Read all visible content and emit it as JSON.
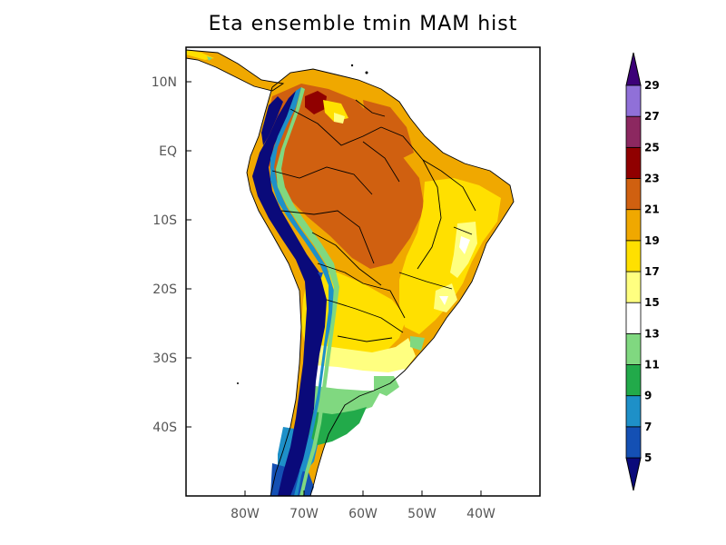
{
  "title": "Eta ensemble tmin MAM hist",
  "map": {
    "lat_ticks": [
      {
        "label": "10N",
        "lat": 10
      },
      {
        "label": "EQ",
        "lat": 0
      },
      {
        "label": "10S",
        "lat": -10
      },
      {
        "label": "20S",
        "lat": -20
      },
      {
        "label": "30S",
        "lat": -30
      },
      {
        "label": "40S",
        "lat": -40
      }
    ],
    "lon_ticks": [
      {
        "label": "80W",
        "lon": -80
      },
      {
        "label": "70W",
        "lon": -70
      },
      {
        "label": "60W",
        "lon": -60
      },
      {
        "label": "50W",
        "lon": -50
      },
      {
        "label": "40W",
        "lon": -40
      }
    ],
    "lat_range": [
      -50,
      15
    ],
    "lon_range": [
      -90,
      -30
    ]
  },
  "colorbar": {
    "levels": [
      "5",
      "7",
      "9",
      "11",
      "13",
      "15",
      "17",
      "19",
      "21",
      "23",
      "25",
      "27",
      "29"
    ],
    "colors": [
      "#0a0a7a",
      "#1450b4",
      "#1e90c8",
      "#22aa4a",
      "#80d880",
      "#ffffff",
      "#ffff80",
      "#ffe000",
      "#f0a800",
      "#d06010",
      "#900000",
      "#8c2860",
      "#9070d8",
      "#3c0078"
    ]
  }
}
